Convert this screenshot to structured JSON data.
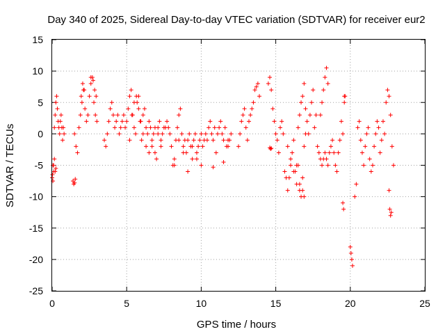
{
  "chart_data": {
    "type": "scatter",
    "title": "Day 340 of 2025, Sidereal Day-to-day VTEC variation (SDTVAR) for receiver eur2",
    "xlabel": "GPS time / hours",
    "ylabel": "SDTVAR / TECUs",
    "xlim": [
      0,
      25
    ],
    "ylim": [
      -25,
      15
    ],
    "xticks": [
      "0",
      "5",
      "10",
      "15",
      "20",
      "25"
    ],
    "yticks": [
      "15",
      "10",
      "5",
      "0",
      "-5",
      "-10",
      "-15",
      "-20",
      "-25"
    ],
    "grid": true,
    "marker": "+",
    "color": "#ff0000",
    "series": [
      {
        "name": "SDTVAR",
        "x": [
          0.0,
          0.05,
          0.1,
          0.15,
          0.2,
          0.25,
          0.3,
          0.35,
          0.4,
          0.45,
          0.5,
          0.55,
          0.6,
          0.65,
          0.7,
          0.75,
          0.8,
          0.02,
          0.05,
          0.1,
          0.15,
          0.2,
          0.25,
          1.4,
          1.45,
          1.5,
          1.55,
          1.5,
          1.6,
          1.7,
          1.8,
          1.9,
          2.0,
          2.1,
          2.2,
          2.3,
          2.4,
          2.5,
          2.6,
          2.7,
          2.8,
          2.9,
          3.0,
          1.95,
          2.05,
          2.15,
          2.6,
          2.75,
          2.85,
          2.95,
          3.5,
          3.6,
          3.7,
          3.8,
          3.9,
          4.0,
          4.1,
          4.2,
          4.3,
          4.4,
          4.5,
          4.6,
          4.7,
          4.8,
          4.9,
          5.0,
          5.1,
          5.2,
          5.3,
          5.4,
          5.5,
          5.6,
          5.7,
          5.8,
          5.9,
          6.0,
          6.1,
          6.2,
          6.3,
          6.4,
          6.5,
          6.6,
          6.7,
          6.8,
          6.9,
          7.0,
          7.1,
          7.2,
          7.3,
          7.4,
          7.5,
          5.2,
          5.35,
          5.5,
          5.65,
          5.8,
          5.95,
          6.1,
          6.3,
          6.5,
          6.7,
          6.9,
          7.1,
          7.3,
          7.6,
          7.7,
          7.8,
          7.9,
          8.0,
          8.1,
          8.2,
          8.3,
          8.4,
          8.5,
          8.6,
          8.7,
          8.8,
          8.9,
          9.0,
          9.1,
          9.2,
          9.3,
          9.4,
          9.5,
          9.6,
          9.7,
          9.8,
          9.9,
          10.0,
          8.2,
          8.5,
          8.8,
          9.1,
          9.4,
          9.7,
          10.0,
          10.1,
          10.2,
          10.3,
          10.4,
          10.5,
          10.6,
          10.7,
          10.8,
          10.9,
          11.0,
          11.1,
          11.2,
          11.3,
          11.4,
          11.5,
          11.6,
          11.7,
          11.8,
          11.9,
          12.0,
          10.8,
          11.5,
          11.8,
          12.5,
          12.6,
          12.7,
          12.8,
          12.9,
          13.0,
          13.1,
          13.2,
          13.3,
          13.4,
          13.5,
          13.6,
          13.7,
          13.8,
          13.9,
          14.5,
          14.6,
          14.7,
          14.8,
          14.9,
          15.0,
          15.1,
          15.2,
          15.3,
          15.4,
          15.5,
          14.6,
          14.65,
          14.7,
          15.6,
          15.7,
          15.8,
          15.9,
          16.0,
          16.1,
          16.2,
          16.3,
          16.4,
          16.5,
          16.6,
          16.7,
          16.8,
          16.9,
          17.0,
          15.8,
          16.0,
          16.2,
          16.4,
          16.6,
          16.8,
          16.9,
          16.5,
          16.6,
          16.7,
          16.8,
          16.9,
          17.0,
          17.1,
          17.2,
          17.3,
          17.4,
          17.5,
          17.6,
          17.7,
          17.8,
          17.9,
          18.0,
          18.1,
          18.2,
          18.3,
          18.4,
          18.5,
          18.6,
          18.7,
          18.8,
          18.9,
          19.0,
          18.0,
          18.1,
          18.2,
          18.3,
          18.4,
          18.5,
          19.1,
          19.2,
          19.3,
          19.4,
          19.5,
          19.6,
          19.5,
          19.55,
          19.6,
          19.65,
          20.0,
          20.05,
          20.1,
          20.15,
          20.3,
          20.4,
          20.5,
          20.6,
          20.7,
          20.8,
          20.9,
          21.0,
          21.1,
          21.2,
          21.3,
          21.4,
          21.5,
          21.6,
          21.7,
          21.8,
          21.9,
          22.0,
          22.1,
          22.2,
          22.3,
          22.4,
          22.5,
          22.6,
          22.7,
          22.8,
          22.9,
          22.6,
          22.65,
          22.7,
          22.75
        ],
        "y": [
          -7,
          -5,
          -6,
          1,
          3,
          5,
          6,
          4,
          2,
          1,
          0,
          2,
          3,
          1,
          -1,
          1,
          0,
          -6.5,
          -7.5,
          -5,
          -4,
          -6,
          -5.5,
          -7.5,
          -8,
          -7.8,
          -7.2,
          0,
          -2,
          -3,
          1,
          3,
          5,
          7,
          4,
          2,
          3,
          6,
          8,
          9,
          5,
          3,
          2,
          6,
          8,
          7,
          9,
          8.5,
          7,
          6,
          -1,
          -2,
          0,
          2,
          4,
          5,
          3,
          1,
          2,
          3,
          0,
          1,
          2,
          3,
          1,
          2,
          4,
          6,
          7,
          3,
          1,
          0,
          5,
          6,
          2,
          -1,
          3,
          4,
          1,
          0,
          2,
          1,
          -2,
          0,
          -3,
          -4,
          1,
          2,
          -1,
          0,
          1,
          -1,
          3,
          5,
          6,
          4,
          2,
          0,
          -2,
          -3,
          -1,
          1,
          0,
          -2,
          1,
          2,
          1,
          0,
          -2,
          -5,
          -4,
          -1,
          1,
          3,
          4,
          0,
          -2,
          -1,
          -3,
          -1,
          0,
          -2,
          -4,
          -1,
          0,
          -3,
          -2,
          -1,
          0,
          -5,
          -1,
          -3,
          -6,
          -2,
          -4,
          -5,
          -2,
          -1,
          0,
          -1,
          1,
          2,
          0,
          -1,
          1,
          -3,
          0,
          1,
          2,
          0,
          -1,
          1,
          -2,
          -1,
          -1,
          0,
          -5.3,
          -4.5,
          -2,
          -2,
          0,
          2,
          3,
          4,
          1,
          -1,
          2,
          3,
          4,
          5,
          7,
          7.5,
          8,
          6,
          8,
          9,
          7,
          4,
          2,
          0,
          -1,
          -3,
          1,
          2,
          0,
          -2.2,
          -2.4,
          -2.3,
          -6,
          -7,
          -9,
          -7,
          -5,
          -3,
          -1,
          -6,
          -8,
          -5,
          -9,
          -10,
          -7,
          -2,
          0,
          -2,
          -4,
          -6,
          -5,
          -8,
          -9,
          -10,
          1,
          3,
          5,
          6,
          8,
          4,
          2,
          0,
          3,
          5,
          7,
          1,
          3,
          -2,
          -3,
          -4,
          -5,
          -4,
          -3,
          -4,
          -5,
          -3,
          -2,
          -1,
          -3,
          -5,
          3,
          5,
          7,
          9,
          10.5,
          8,
          -6,
          -3,
          -1,
          2,
          0,
          6,
          -11,
          -12,
          5,
          6,
          -18,
          -19,
          -20,
          -21,
          -10,
          -8,
          1,
          2,
          -1,
          -3,
          -5,
          -2,
          0,
          1,
          -4,
          -6,
          -5,
          -2,
          0,
          2,
          1,
          -3,
          -1,
          2,
          0,
          5,
          7,
          6,
          3,
          -2,
          -5,
          -9,
          -12,
          -13,
          -12.5
        ]
      }
    ]
  }
}
